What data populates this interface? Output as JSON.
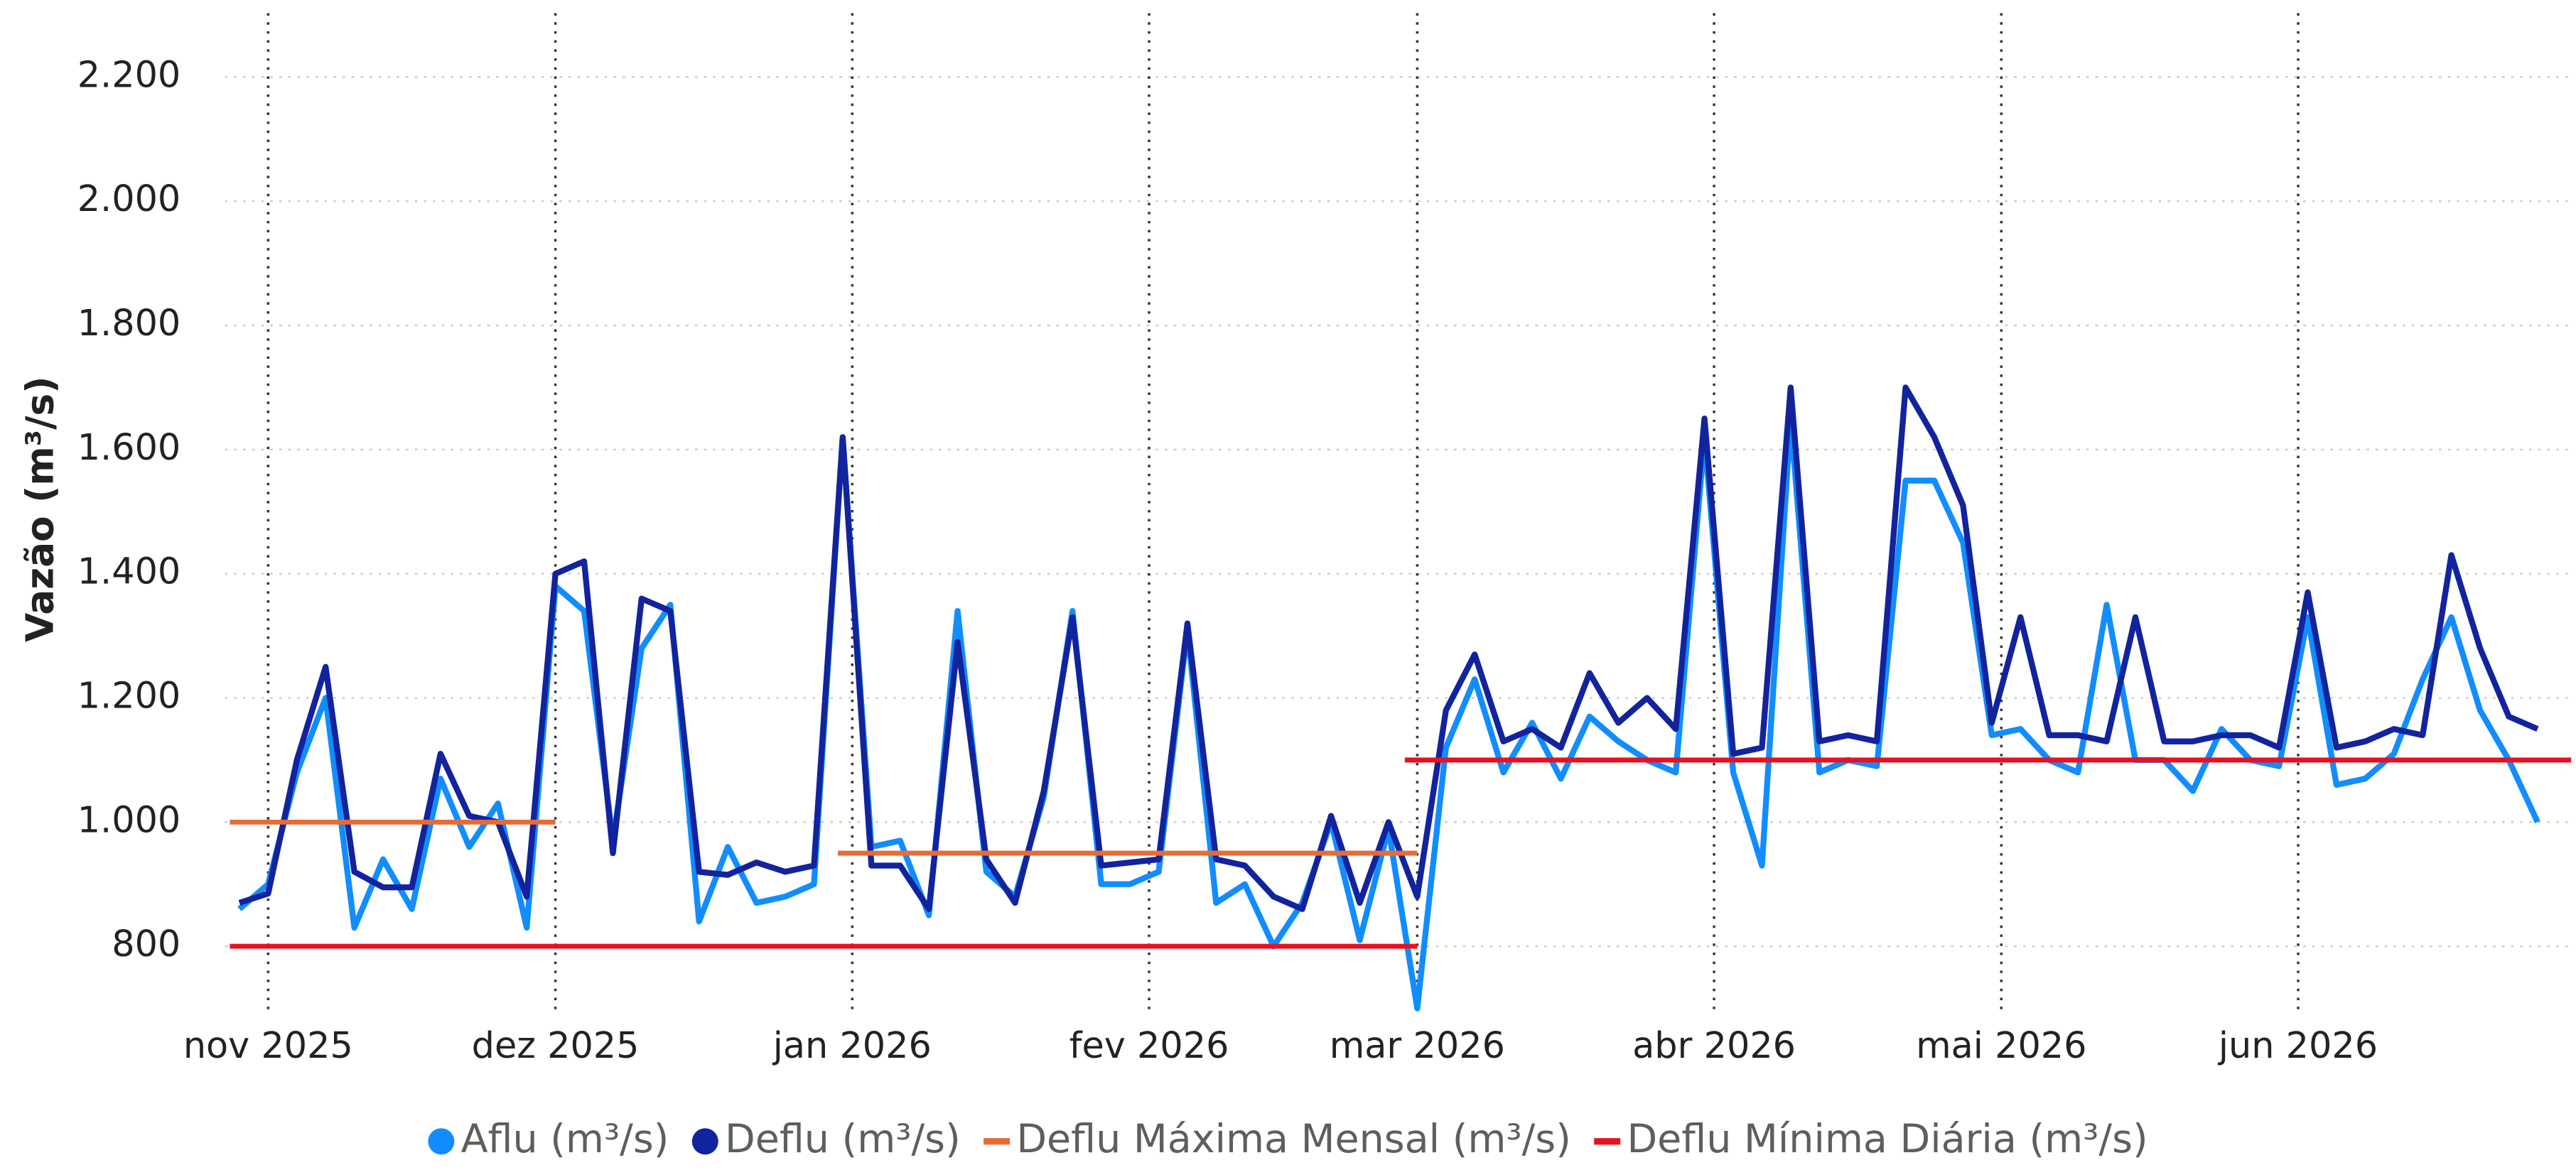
{
  "chart_data": {
    "type": "line",
    "ylabel": "Vazão (m³/s)",
    "x": [
      -3,
      0,
      3,
      6,
      9,
      12,
      15,
      18,
      21,
      24,
      27,
      30,
      33,
      36,
      39,
      42,
      45,
      48,
      51,
      54,
      57,
      60,
      63,
      66,
      69,
      72,
      75,
      78,
      81,
      84,
      87,
      90,
      93,
      96,
      99,
      102,
      105,
      108,
      111,
      114,
      117,
      120,
      123,
      126,
      129,
      132,
      135,
      138,
      141,
      144,
      147,
      150,
      153,
      156,
      159,
      162,
      165,
      168,
      171,
      174,
      177,
      180,
      183,
      186,
      189,
      192,
      195,
      198,
      201,
      204,
      207,
      210,
      213,
      216,
      219,
      222,
      225,
      228,
      231,
      234,
      237
    ],
    "xlim": [
      -4.5,
      240.5
    ],
    "xticks": [
      {
        "value": 0,
        "label": "nov 2025"
      },
      {
        "value": 30,
        "label": "dez 2025"
      },
      {
        "value": 61,
        "label": "jan 2026"
      },
      {
        "value": 92,
        "label": "fev 2026"
      },
      {
        "value": 120,
        "label": "mar 2026"
      },
      {
        "value": 151,
        "label": "abr 2026"
      },
      {
        "value": 181,
        "label": "mai 2026"
      },
      {
        "value": 212,
        "label": "jun 2026"
      }
    ],
    "ylim": [
      700,
      2250
    ],
    "yticks": [
      800,
      {
        "value": 1000,
        "label": "1.000"
      },
      {
        "value": 1200,
        "label": "1.200"
      },
      {
        "value": 1400,
        "label": "1.400"
      },
      {
        "value": 1600,
        "label": "1.600"
      },
      {
        "value": 1800,
        "label": "1.800"
      },
      {
        "value": 2000,
        "label": "2.000"
      },
      {
        "value": 2200,
        "label": "2.200"
      }
    ],
    "grid": true,
    "legend": "bottom",
    "series": [
      {
        "name": "Aflu (m³/s)",
        "color": "#118dff",
        "marker": "circle",
        "values": [
          860,
          900,
          1080,
          1200,
          830,
          940,
          860,
          1070,
          960,
          1030,
          830,
          1380,
          1340,
          970,
          1280,
          1350,
          840,
          960,
          870,
          880,
          900,
          1620,
          960,
          970,
          850,
          1340,
          920,
          880,
          1040,
          1340,
          900,
          900,
          920,
          1310,
          870,
          900,
          800,
          870,
          1000,
          810,
          990,
          700,
          1120,
          1230,
          1080,
          1160,
          1070,
          1170,
          1130,
          1100,
          1080,
          1620,
          1080,
          930,
          1650,
          1080,
          1100,
          1090,
          1550,
          1550,
          1450,
          1140,
          1150,
          1100,
          1080,
          1350,
          1100,
          1100,
          1050,
          1150,
          1100,
          1090,
          1330,
          1060,
          1070,
          1110,
          1230,
          1330,
          1180,
          1100,
          1000
        ]
      },
      {
        "name": "Deflu (m³/s)",
        "color": "#12239e",
        "marker": "circle",
        "values": [
          870,
          885,
          1100,
          1250,
          920,
          895,
          895,
          1110,
          1010,
          1000,
          880,
          1400,
          1420,
          950,
          1360,
          1340,
          920,
          915,
          935,
          920,
          930,
          1620,
          930,
          930,
          860,
          1290,
          940,
          870,
          1050,
          1330,
          930,
          935,
          940,
          1320,
          940,
          930,
          880,
          860,
          1010,
          870,
          1000,
          880,
          1180,
          1270,
          1130,
          1150,
          1120,
          1240,
          1160,
          1200,
          1150,
          1650,
          1110,
          1120,
          1700,
          1130,
          1140,
          1130,
          1700,
          1620,
          1510,
          1160,
          1330,
          1140,
          1140,
          1130,
          1330,
          1130,
          1130,
          1140,
          1140,
          1120,
          1370,
          1120,
          1130,
          1150,
          1140,
          1430,
          1280,
          1170,
          1150
        ]
      },
      {
        "name": "Deflu Máxima Mensal (m³/s)",
        "color": "#e66c37",
        "marker": "line",
        "x": [
          -4,
          30,
          30,
          59.5,
          120
        ],
        "values": [
          1000,
          1000,
          null,
          950,
          950
        ]
      },
      {
        "name": "Deflu Mínima Diária (m³/s)",
        "color": "#e81123",
        "marker": "line",
        "x": [
          -4,
          120,
          120,
          118.7,
          240.5
        ],
        "values": [
          800,
          800,
          null,
          1100,
          1100
        ]
      }
    ]
  }
}
